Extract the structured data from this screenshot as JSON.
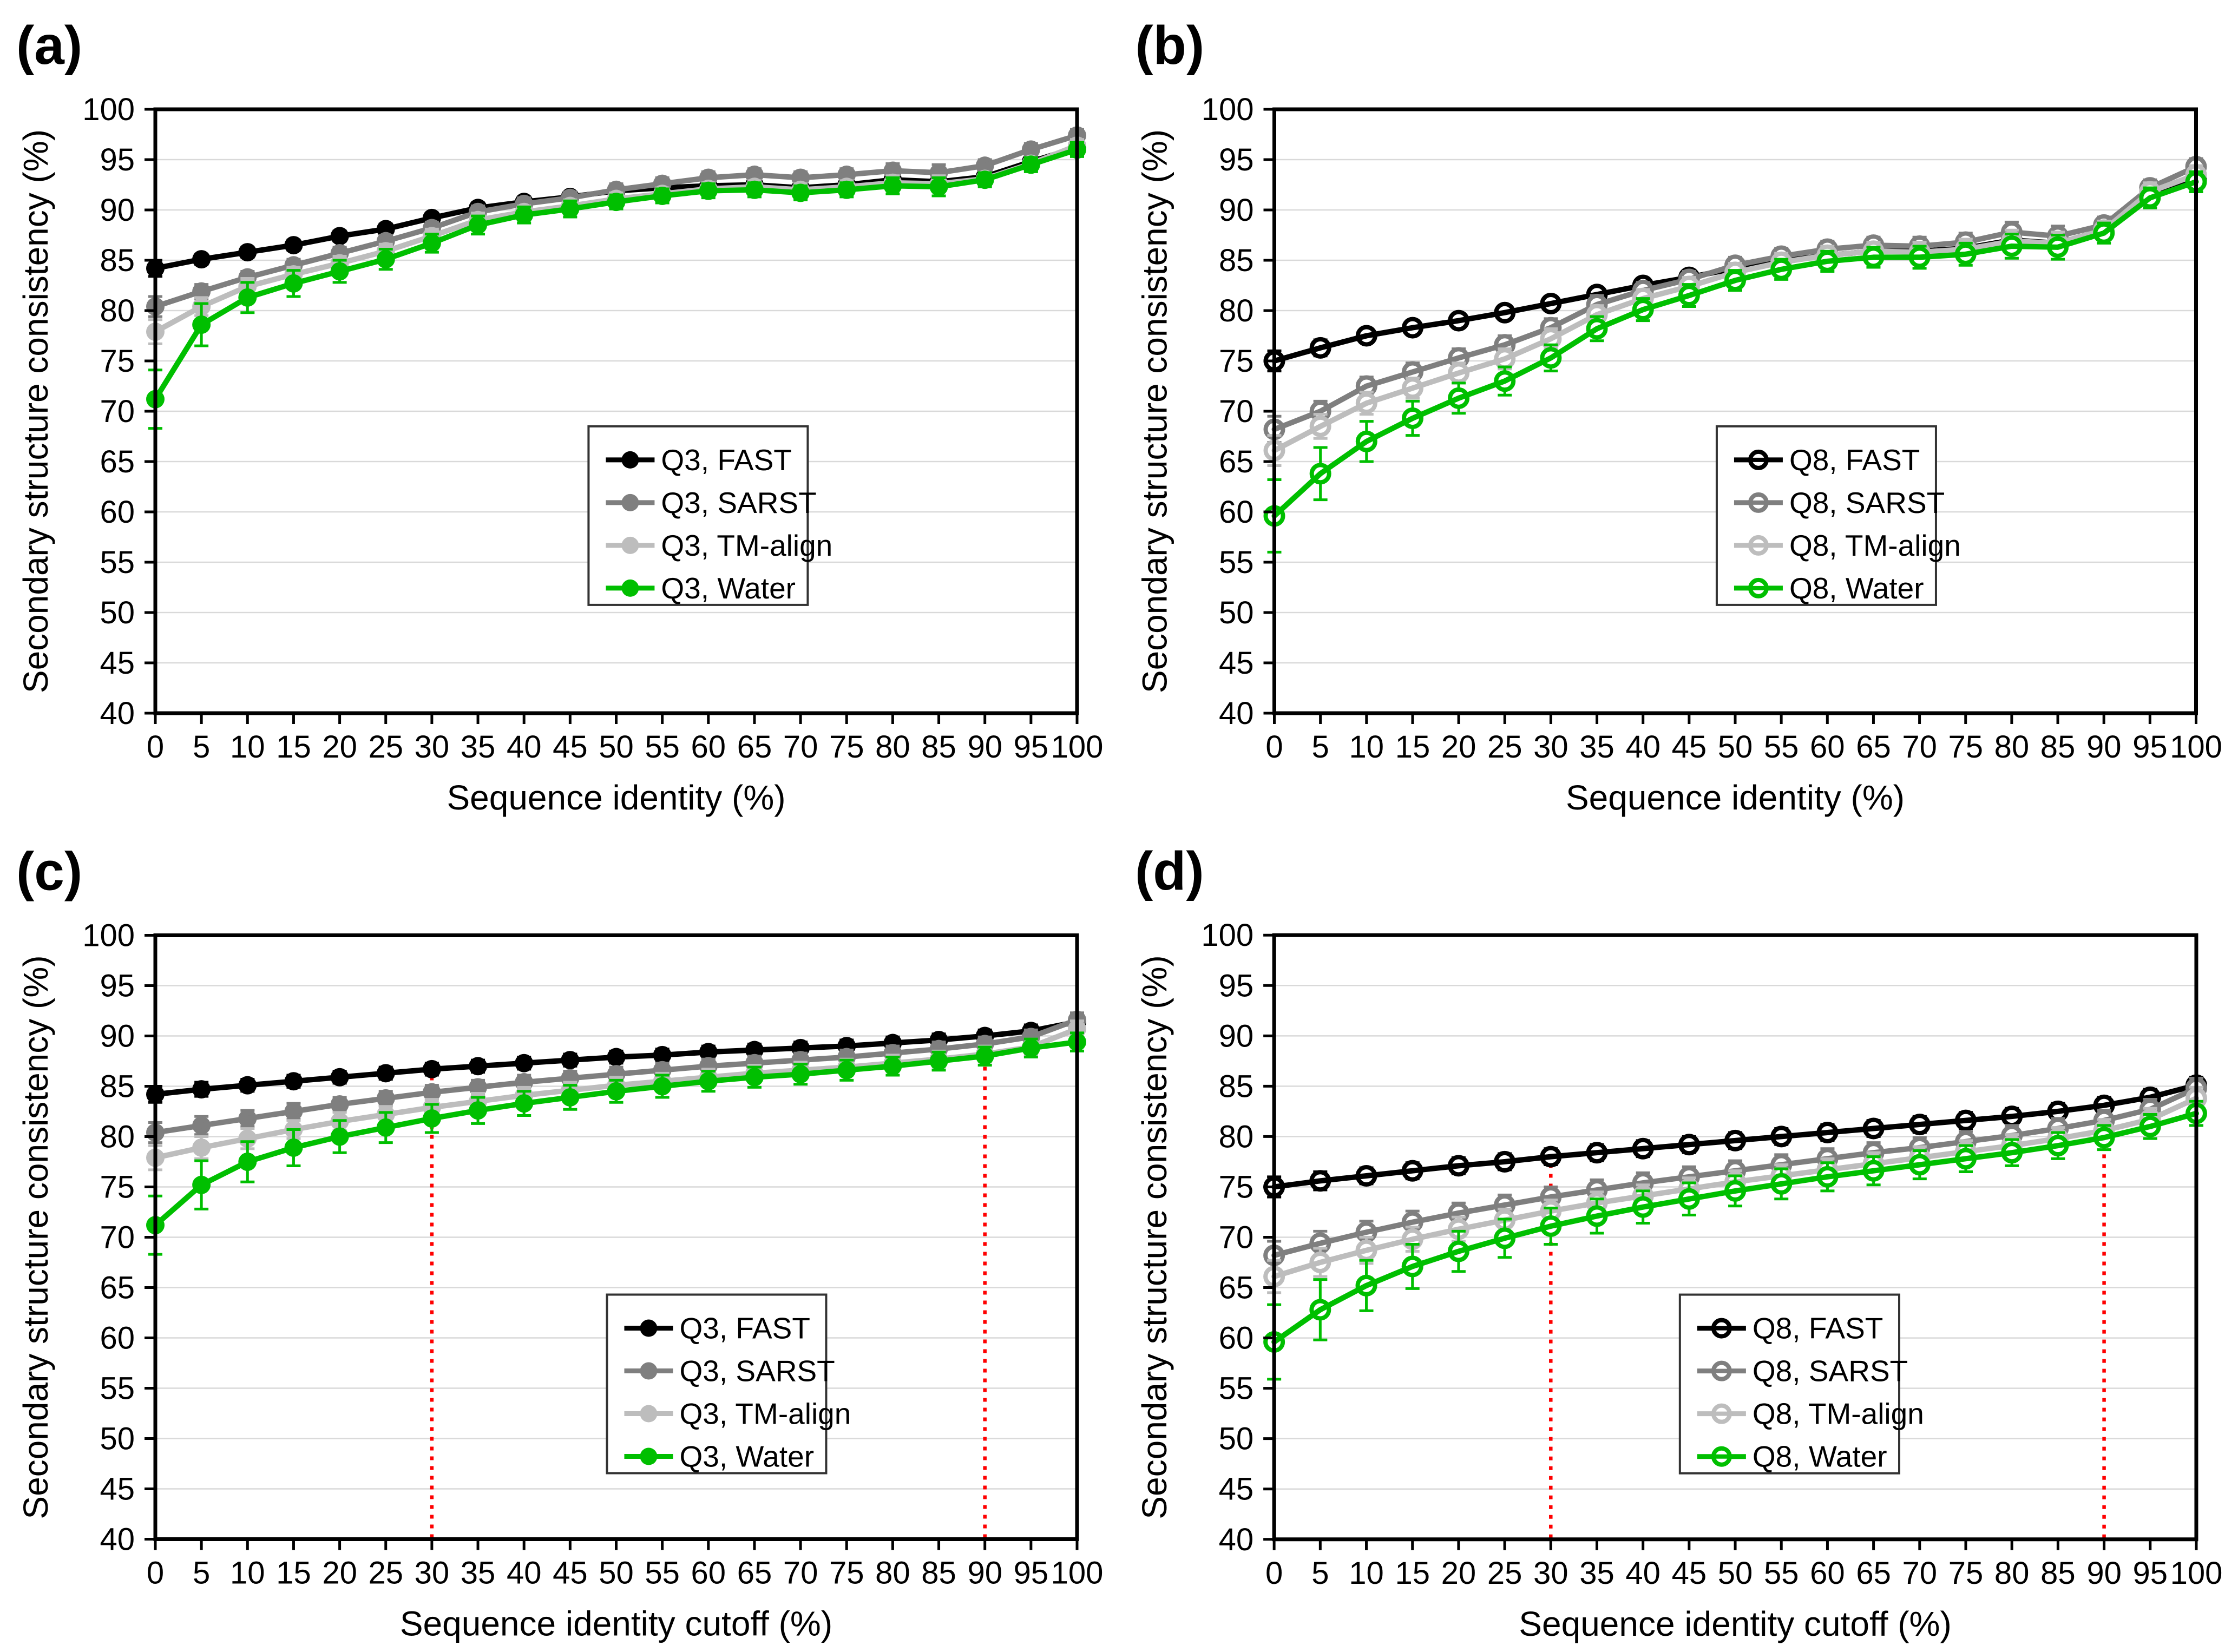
{
  "figure": {
    "background": "#ffffff",
    "axis_color": "#000000",
    "grid_color": "#d9d9d9",
    "ref_line_color": "#ff0000",
    "series_colors": {
      "FAST": "#000000",
      "SARST": "#7f7f7f",
      "TM-align": "#bdbdbd",
      "Water": "#00bf00"
    }
  },
  "chart_data": [
    {
      "id": "a",
      "label": "(a)",
      "type": "line",
      "xlabel": "Sequence identity (%)",
      "ylabel": "Secondary structure consistency (%)",
      "xlim": [
        0,
        100
      ],
      "ylim": [
        40,
        100
      ],
      "xtick_step": 5,
      "ytick_step": 5,
      "grid": "horizontal",
      "marker": "filled",
      "legend_pos": {
        "x": 0.47,
        "y": 0.525
      },
      "ref_lines": [],
      "x": [
        0,
        5,
        10,
        15,
        20,
        25,
        30,
        35,
        40,
        45,
        50,
        55,
        60,
        65,
        70,
        75,
        80,
        85,
        90,
        95,
        100
      ],
      "series": [
        {
          "name": "Q3, FAST",
          "color": "#000000",
          "values": [
            84.2,
            85.1,
            85.8,
            86.5,
            87.4,
            88.1,
            89.2,
            90.2,
            90.8,
            91.3,
            91.9,
            92.2,
            92.4,
            92.5,
            92.2,
            92.5,
            93.0,
            92.8,
            93.3,
            94.8,
            96.2
          ],
          "err": [
            0.8,
            0.5,
            0.5,
            0.5,
            0.5,
            0.5,
            0.5,
            0.5,
            0.5,
            0.5,
            0.5,
            0.5,
            0.5,
            0.5,
            0.5,
            0.5,
            0.6,
            0.6,
            0.5,
            0.5,
            0.5
          ]
        },
        {
          "name": "Q3, SARST",
          "color": "#7f7f7f",
          "values": [
            80.4,
            81.9,
            83.3,
            84.5,
            85.7,
            86.9,
            88.2,
            89.8,
            90.6,
            91.2,
            92.0,
            92.6,
            93.2,
            93.5,
            93.2,
            93.5,
            93.9,
            93.7,
            94.4,
            96.0,
            97.4
          ],
          "err": [
            1.0,
            0.7,
            0.6,
            0.6,
            0.6,
            0.6,
            0.6,
            0.6,
            0.6,
            0.6,
            0.6,
            0.6,
            0.6,
            0.6,
            0.6,
            0.6,
            0.7,
            0.8,
            0.6,
            0.6,
            0.6
          ]
        },
        {
          "name": "Q3, TM-align",
          "color": "#bdbdbd",
          "values": [
            77.9,
            80.4,
            82.4,
            83.6,
            84.7,
            85.9,
            87.4,
            89.0,
            89.8,
            90.4,
            91.1,
            91.6,
            92.1,
            92.3,
            92.0,
            92.3,
            92.7,
            92.6,
            93.1,
            94.6,
            96.4
          ],
          "err": [
            1.2,
            0.9,
            0.8,
            0.7,
            0.7,
            0.7,
            0.7,
            0.7,
            0.6,
            0.6,
            0.6,
            0.6,
            0.6,
            0.6,
            0.6,
            0.6,
            0.7,
            0.8,
            0.6,
            0.6,
            0.6
          ]
        },
        {
          "name": "Q3, Water",
          "color": "#00bf00",
          "values": [
            71.2,
            78.6,
            81.3,
            82.7,
            83.9,
            85.1,
            86.7,
            88.5,
            89.5,
            90.1,
            90.8,
            91.4,
            91.9,
            92.0,
            91.7,
            92.0,
            92.4,
            92.3,
            93.0,
            94.5,
            96.0
          ],
          "err": [
            2.9,
            2.1,
            1.5,
            1.3,
            1.1,
            1.0,
            0.9,
            0.9,
            0.8,
            0.8,
            0.7,
            0.7,
            0.7,
            0.7,
            0.7,
            0.7,
            0.8,
            0.9,
            0.7,
            0.7,
            0.7
          ]
        }
      ]
    },
    {
      "id": "b",
      "label": "(b)",
      "type": "line",
      "xlabel": "Sequence identity (%)",
      "ylabel": "Secondary structure consistency (%)",
      "xlim": [
        0,
        100
      ],
      "ylim": [
        40,
        100
      ],
      "xtick_step": 5,
      "ytick_step": 5,
      "grid": "horizontal",
      "marker": "open",
      "legend_pos": {
        "x": 0.48,
        "y": 0.525
      },
      "ref_lines": [],
      "x": [
        0,
        5,
        10,
        15,
        20,
        25,
        30,
        35,
        40,
        45,
        50,
        55,
        60,
        65,
        70,
        75,
        80,
        85,
        90,
        95,
        100
      ],
      "series": [
        {
          "name": "Q8, FAST",
          "color": "#000000",
          "values": [
            75.0,
            76.3,
            77.5,
            78.3,
            79.0,
            79.8,
            80.7,
            81.6,
            82.5,
            83.3,
            84.2,
            84.9,
            85.5,
            85.9,
            85.9,
            86.2,
            87.0,
            86.7,
            88.0,
            91.5,
            93.0
          ],
          "err": [
            1.0,
            0.8,
            0.7,
            0.7,
            0.7,
            0.7,
            0.7,
            0.7,
            0.7,
            0.7,
            0.7,
            0.7,
            0.7,
            0.7,
            0.8,
            0.8,
            0.9,
            0.9,
            0.7,
            0.7,
            0.7
          ]
        },
        {
          "name": "Q8, SARST",
          "color": "#7f7f7f",
          "values": [
            68.2,
            70.0,
            72.5,
            73.9,
            75.3,
            76.6,
            78.3,
            80.6,
            82.0,
            83.1,
            84.5,
            85.4,
            86.1,
            86.5,
            86.4,
            86.8,
            87.8,
            87.4,
            88.5,
            92.2,
            94.3
          ],
          "err": [
            1.3,
            1.0,
            0.9,
            0.9,
            0.9,
            0.9,
            0.9,
            0.9,
            0.8,
            0.8,
            0.8,
            0.8,
            0.8,
            0.8,
            0.9,
            0.9,
            1.0,
            1.0,
            0.8,
            0.8,
            0.8
          ]
        },
        {
          "name": "Q8, TM-align",
          "color": "#bdbdbd",
          "values": [
            66.1,
            68.5,
            70.8,
            72.3,
            73.8,
            75.2,
            77.2,
            79.6,
            81.2,
            82.4,
            83.8,
            84.8,
            85.5,
            85.9,
            85.8,
            86.1,
            86.9,
            86.7,
            88.0,
            91.8,
            93.5
          ],
          "err": [
            1.5,
            1.2,
            1.1,
            1.0,
            1.0,
            1.0,
            1.0,
            0.9,
            0.9,
            0.9,
            0.9,
            0.9,
            0.9,
            0.9,
            1.0,
            1.0,
            1.1,
            1.1,
            0.9,
            0.9,
            0.9
          ]
        },
        {
          "name": "Q8, Water",
          "color": "#00bf00",
          "values": [
            59.6,
            63.8,
            67.0,
            69.3,
            71.3,
            73.0,
            75.3,
            78.2,
            80.1,
            81.5,
            83.0,
            84.1,
            84.9,
            85.3,
            85.3,
            85.6,
            86.4,
            86.3,
            87.7,
            91.2,
            92.8
          ],
          "err": [
            3.6,
            2.6,
            2.0,
            1.7,
            1.5,
            1.4,
            1.3,
            1.2,
            1.1,
            1.1,
            1.0,
            1.0,
            1.0,
            1.0,
            1.1,
            1.1,
            1.2,
            1.2,
            1.0,
            1.0,
            1.0
          ]
        }
      ]
    },
    {
      "id": "c",
      "label": "(c)",
      "type": "line",
      "xlabel": "Sequence identity cutoff (%)",
      "ylabel": "Secondary structure consistency (%)",
      "xlim": [
        0,
        100
      ],
      "ylim": [
        40,
        100
      ],
      "xtick_step": 5,
      "ytick_step": 5,
      "grid": "horizontal",
      "marker": "filled",
      "legend_pos": {
        "x": 0.49,
        "y": 0.595
      },
      "ref_lines": [
        {
          "x": 30,
          "color": "#ff0000"
        },
        {
          "x": 90,
          "color": "#ff0000"
        }
      ],
      "x": [
        0,
        5,
        10,
        15,
        20,
        25,
        30,
        35,
        40,
        45,
        50,
        55,
        60,
        65,
        70,
        75,
        80,
        85,
        90,
        95,
        100
      ],
      "series": [
        {
          "name": "Q3, FAST",
          "color": "#000000",
          "values": [
            84.2,
            84.7,
            85.1,
            85.5,
            85.9,
            86.3,
            86.7,
            87.0,
            87.3,
            87.6,
            87.9,
            88.1,
            88.4,
            88.6,
            88.8,
            89.0,
            89.3,
            89.6,
            90.0,
            90.5,
            91.4
          ],
          "err": [
            0.8,
            0.7,
            0.6,
            0.6,
            0.6,
            0.6,
            0.6,
            0.6,
            0.6,
            0.6,
            0.6,
            0.6,
            0.6,
            0.6,
            0.6,
            0.6,
            0.6,
            0.6,
            0.6,
            0.6,
            0.6
          ]
        },
        {
          "name": "Q3, SARST",
          "color": "#7f7f7f",
          "values": [
            80.4,
            81.1,
            81.8,
            82.5,
            83.2,
            83.8,
            84.4,
            84.9,
            85.4,
            85.8,
            86.2,
            86.6,
            87.0,
            87.3,
            87.6,
            87.9,
            88.3,
            88.7,
            89.2,
            89.9,
            91.6
          ],
          "err": [
            1.0,
            0.9,
            0.8,
            0.8,
            0.7,
            0.7,
            0.7,
            0.7,
            0.7,
            0.7,
            0.7,
            0.7,
            0.7,
            0.7,
            0.7,
            0.7,
            0.7,
            0.7,
            0.7,
            0.7,
            0.7
          ]
        },
        {
          "name": "Q3, TM-align",
          "color": "#bdbdbd",
          "values": [
            77.9,
            78.9,
            79.8,
            80.7,
            81.5,
            82.2,
            82.9,
            83.5,
            84.1,
            84.6,
            85.1,
            85.5,
            85.9,
            86.3,
            86.6,
            86.9,
            87.3,
            87.7,
            88.2,
            88.9,
            90.7
          ],
          "err": [
            1.2,
            1.1,
            1.0,
            0.9,
            0.9,
            0.8,
            0.8,
            0.8,
            0.8,
            0.8,
            0.8,
            0.8,
            0.8,
            0.8,
            0.8,
            0.8,
            0.8,
            0.8,
            0.8,
            0.8,
            0.8
          ]
        },
        {
          "name": "Q3, Water",
          "color": "#00bf00",
          "values": [
            71.2,
            75.2,
            77.5,
            78.9,
            80.0,
            80.9,
            81.8,
            82.6,
            83.3,
            83.9,
            84.5,
            85.0,
            85.5,
            85.9,
            86.2,
            86.6,
            87.0,
            87.5,
            88.0,
            88.8,
            89.4
          ],
          "err": [
            2.9,
            2.4,
            2.0,
            1.8,
            1.6,
            1.5,
            1.4,
            1.3,
            1.2,
            1.2,
            1.1,
            1.1,
            1.0,
            1.0,
            1.0,
            1.0,
            0.9,
            0.9,
            0.9,
            0.9,
            0.9
          ]
        }
      ]
    },
    {
      "id": "d",
      "label": "(d)",
      "type": "line",
      "xlabel": "Sequence identity cutoff (%)",
      "ylabel": "Secondary structure consistency (%)",
      "xlim": [
        0,
        100
      ],
      "ylim": [
        40,
        100
      ],
      "xtick_step": 5,
      "ytick_step": 5,
      "grid": "horizontal",
      "marker": "open",
      "legend_pos": {
        "x": 0.44,
        "y": 0.595
      },
      "ref_lines": [
        {
          "x": 30,
          "color": "#ff0000"
        },
        {
          "x": 90,
          "color": "#ff0000"
        }
      ],
      "x": [
        0,
        5,
        10,
        15,
        20,
        25,
        30,
        35,
        40,
        45,
        50,
        55,
        60,
        65,
        70,
        75,
        80,
        85,
        90,
        95,
        100
      ],
      "series": [
        {
          "name": "Q8, FAST",
          "color": "#000000",
          "values": [
            75.0,
            75.6,
            76.1,
            76.6,
            77.1,
            77.5,
            78.0,
            78.4,
            78.8,
            79.2,
            79.6,
            80.0,
            80.4,
            80.8,
            81.2,
            81.6,
            82.0,
            82.5,
            83.1,
            83.9,
            85.1
          ],
          "err": [
            1.0,
            0.9,
            0.8,
            0.8,
            0.8,
            0.8,
            0.8,
            0.8,
            0.8,
            0.8,
            0.8,
            0.8,
            0.8,
            0.8,
            0.8,
            0.8,
            0.8,
            0.8,
            0.8,
            0.8,
            0.8
          ]
        },
        {
          "name": "Q8, SARST",
          "color": "#7f7f7f",
          "values": [
            68.2,
            69.4,
            70.5,
            71.5,
            72.4,
            73.2,
            74.0,
            74.7,
            75.4,
            76.0,
            76.6,
            77.2,
            77.8,
            78.4,
            78.9,
            79.5,
            80.1,
            80.8,
            81.6,
            82.7,
            84.8
          ],
          "err": [
            1.4,
            1.2,
            1.1,
            1.1,
            1.0,
            1.0,
            1.0,
            1.0,
            1.0,
            1.0,
            1.0,
            1.0,
            1.0,
            1.0,
            1.0,
            1.0,
            1.0,
            1.0,
            1.0,
            1.0,
            1.0
          ]
        },
        {
          "name": "Q8, TM-align",
          "color": "#bdbdbd",
          "values": [
            66.1,
            67.5,
            68.7,
            69.8,
            70.8,
            71.7,
            72.6,
            73.4,
            74.1,
            74.8,
            75.5,
            76.1,
            76.7,
            77.3,
            77.9,
            78.5,
            79.1,
            79.8,
            80.6,
            81.7,
            83.8
          ],
          "err": [
            1.6,
            1.4,
            1.3,
            1.2,
            1.2,
            1.1,
            1.1,
            1.1,
            1.1,
            1.1,
            1.1,
            1.1,
            1.1,
            1.1,
            1.1,
            1.1,
            1.1,
            1.1,
            1.1,
            1.1,
            1.1
          ]
        },
        {
          "name": "Q8, Water",
          "color": "#00bf00",
          "values": [
            59.6,
            62.8,
            65.2,
            67.1,
            68.6,
            69.9,
            71.1,
            72.1,
            73.0,
            73.8,
            74.6,
            75.3,
            76.0,
            76.6,
            77.2,
            77.8,
            78.4,
            79.1,
            79.9,
            81.0,
            82.3
          ],
          "err": [
            3.7,
            3.0,
            2.5,
            2.2,
            2.0,
            1.9,
            1.8,
            1.7,
            1.6,
            1.6,
            1.5,
            1.5,
            1.4,
            1.4,
            1.4,
            1.3,
            1.3,
            1.3,
            1.2,
            1.2,
            1.2
          ]
        }
      ]
    }
  ]
}
